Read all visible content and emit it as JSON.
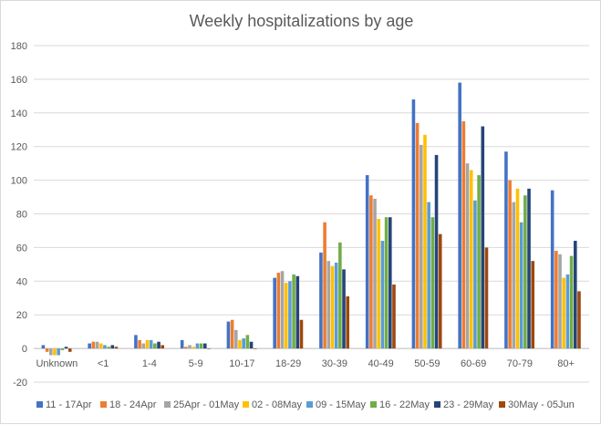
{
  "chart_data": {
    "type": "bar",
    "title": "Weekly hospitalizations by age",
    "xlabel": "",
    "ylabel": "",
    "ylim": [
      -20,
      180
    ],
    "yticks": [
      -20,
      0,
      20,
      40,
      60,
      80,
      100,
      120,
      140,
      160,
      180
    ],
    "grid": true,
    "legend_position": "bottom",
    "categories": [
      "Unknown",
      "<1",
      "1-4",
      "5-9",
      "10-17",
      "18-29",
      "30-39",
      "40-49",
      "50-59",
      "60-69",
      "70-79",
      "80+"
    ],
    "series": [
      {
        "name": "11 - 17Apr",
        "color": "#4472C4",
        "values": [
          2,
          3,
          8,
          5,
          16,
          42,
          57,
          103,
          148,
          158,
          117,
          94
        ]
      },
      {
        "name": "18 - 24Apr",
        "color": "#ED7D31",
        "values": [
          -2,
          4,
          5,
          1,
          17,
          45,
          75,
          91,
          134,
          135,
          100,
          58
        ]
      },
      {
        "name": "25Apr - 01May",
        "color": "#A5A5A5",
        "values": [
          -4,
          4,
          3,
          2,
          11,
          46,
          52,
          89,
          121,
          110,
          87,
          56
        ]
      },
      {
        "name": "02 - 08May",
        "color": "#FFC000",
        "values": [
          -4,
          3,
          5,
          1,
          5,
          39,
          49,
          77,
          127,
          106,
          95,
          42
        ]
      },
      {
        "name": "09 - 15May",
        "color": "#5B9BD5",
        "values": [
          -4,
          2,
          5,
          3,
          6,
          40,
          51,
          64,
          87,
          88,
          75,
          44
        ]
      },
      {
        "name": "16 - 22May",
        "color": "#70AD47",
        "values": [
          -1,
          1,
          3,
          3,
          8,
          44,
          63,
          78,
          78,
          103,
          91,
          55
        ]
      },
      {
        "name": "23 - 29May",
        "color": "#264478",
        "values": [
          1,
          2,
          4,
          3,
          4,
          43,
          47,
          78,
          115,
          132,
          95,
          64
        ]
      },
      {
        "name": "30May - 05Jun",
        "color": "#9E480E",
        "values": [
          -2,
          1,
          2,
          0,
          0,
          17,
          31,
          38,
          68,
          60,
          52,
          34
        ]
      }
    ]
  }
}
